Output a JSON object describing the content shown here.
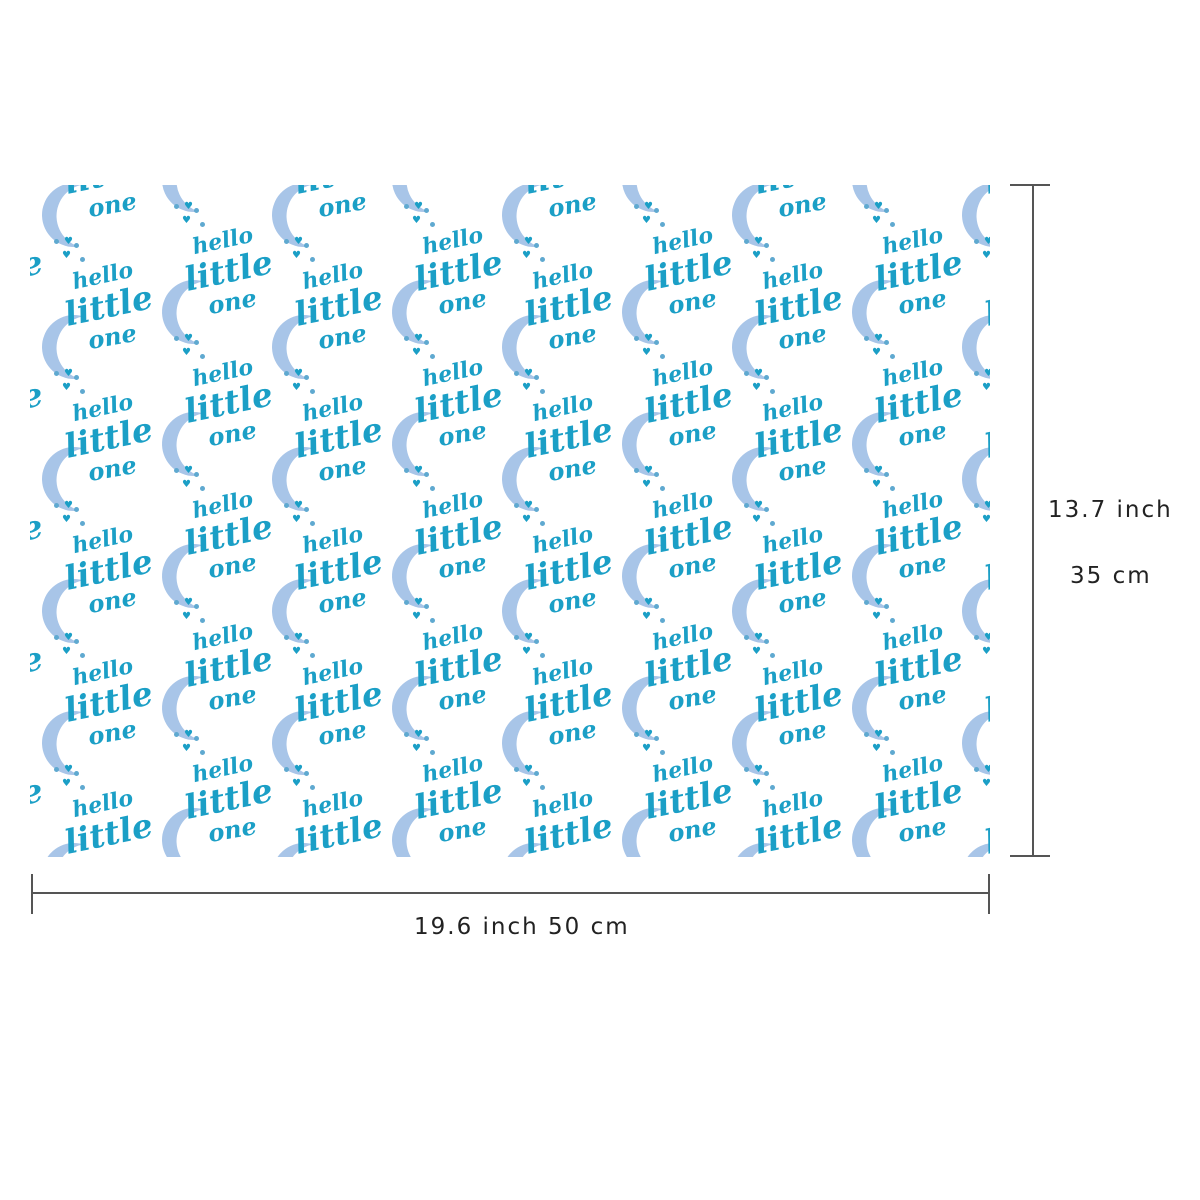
{
  "pattern": {
    "words": [
      "hello",
      "little",
      "one"
    ],
    "text_color": "#1b9fc6",
    "moon_color": "#a8c5e8",
    "icons": [
      "moon-icon",
      "heart-icon",
      "dot-icon"
    ]
  },
  "dimensions": {
    "height_inch": "13.7 inch",
    "height_cm": "35 cm",
    "width_label": "19.6 inch 50 cm"
  }
}
